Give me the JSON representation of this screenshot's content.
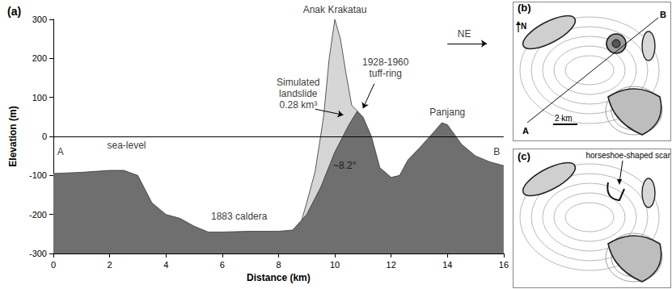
{
  "chart_data": {
    "type": "area",
    "title": "(a)",
    "x_label": "Distance (km)",
    "y_label": "Elevation (m)",
    "xlim": [
      0,
      16
    ],
    "xticks": [
      0,
      2,
      4,
      6,
      8,
      10,
      12,
      14,
      16
    ],
    "ylim": [
      -300,
      300
    ],
    "yticks": [
      -300,
      -200,
      -100,
      0,
      100,
      200,
      300
    ],
    "sea_level": 0,
    "series": [
      {
        "color": "#d6d6d6",
        "x": [
          8.6,
          8.8,
          9.0,
          9.3,
          9.6,
          9.8,
          10.0,
          10.2,
          10.4,
          10.6,
          10.8
        ],
        "values": [
          -240,
          -220,
          -170,
          -90,
          50,
          200,
          300,
          250,
          160,
          80,
          65
        ]
      },
      {
        "color": "#6f6f6f",
        "x": [
          0,
          1,
          2,
          2.5,
          3,
          3.5,
          4,
          4.5,
          5,
          5.5,
          6,
          7,
          8,
          8.5,
          9,
          9.5,
          10,
          10.5,
          10.8,
          11,
          11.3,
          11.6,
          12,
          12.3,
          12.6,
          13,
          13.5,
          13.8,
          14,
          14.5,
          15,
          15.5,
          16
        ],
        "values": [
          -95,
          -92,
          -87,
          -87,
          -100,
          -170,
          -200,
          -210,
          -230,
          -245,
          -245,
          -243,
          -243,
          -240,
          -200,
          -130,
          -40,
          30,
          65,
          50,
          0,
          -80,
          -105,
          -100,
          -60,
          -30,
          10,
          35,
          30,
          -20,
          -50,
          -65,
          -75
        ]
      }
    ],
    "annotations": [
      {
        "text": "A",
        "x": 0.25,
        "y": -40
      },
      {
        "text": "B",
        "x": 15.75,
        "y": -40
      },
      {
        "text": "sea-level",
        "x": 2.6,
        "y": -22
      },
      {
        "text": "1883 caldera",
        "x": 6.6,
        "y": -205
      },
      {
        "text": "Anak Krakatau",
        "x": 10.0,
        "y": 325
      },
      {
        "text": "Simulated\nlandslide\n0.28 km³",
        "x": 8.7,
        "y": 110,
        "arrow_from": [
          9.3,
          70
        ],
        "arrow_to": [
          10.3,
          55
        ]
      },
      {
        "text": "1928-1960\ntuff-ring",
        "x": 11.8,
        "y": 175,
        "arrow_from": [
          11.4,
          135
        ],
        "arrow_to": [
          11.0,
          72
        ]
      },
      {
        "text": "~8.2°",
        "x": 10.35,
        "y": -75
      },
      {
        "text": "Panjang",
        "x": 14.0,
        "y": 62
      },
      {
        "text": "NE",
        "x": 14.6,
        "y": 262,
        "arrow_from": [
          14.0,
          238
        ],
        "arrow_to": [
          15.4,
          238
        ]
      }
    ]
  },
  "maps": [
    {
      "label": "(b)",
      "north": "N",
      "start": "A",
      "end": "B",
      "scale": "2 km"
    },
    {
      "label": "(c)",
      "annotation": "horseshoe-shaped scar"
    }
  ]
}
